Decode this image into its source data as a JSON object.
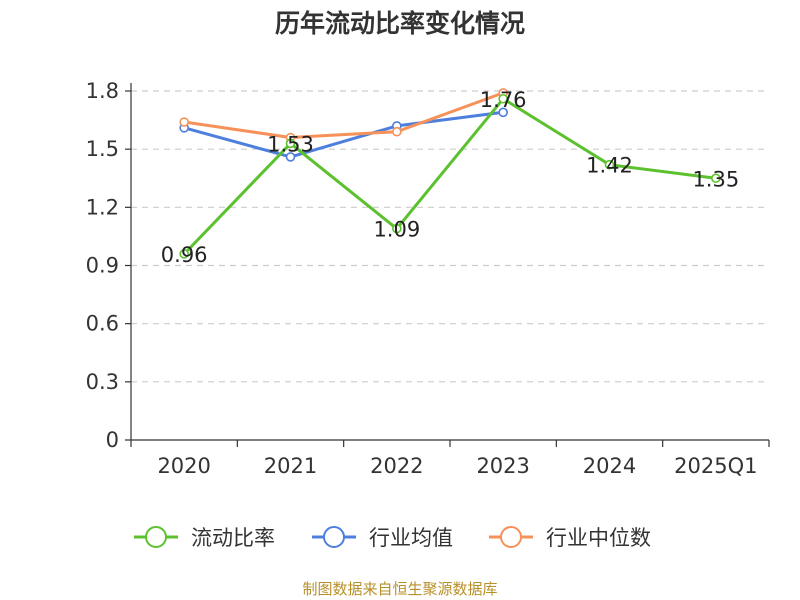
{
  "title": "历年流动比率变化情况",
  "footer": "制图数据来自恒生聚源数据库",
  "chart_data": {
    "type": "line",
    "title": "历年流动比率变化情况",
    "xlabel": "",
    "ylabel": "",
    "categories": [
      "2020",
      "2021",
      "2022",
      "2023",
      "2024",
      "2025Q1"
    ],
    "ylim": [
      0,
      1.8
    ],
    "yticks": [
      "0",
      "0.3",
      "0.6",
      "0.9",
      "1.2",
      "1.5",
      "1.8"
    ],
    "grid": "horizontal-dashed",
    "legend": "bottom",
    "series": [
      {
        "name": "流动比率",
        "color": "#5cc12f",
        "values": [
          0.96,
          1.53,
          1.09,
          1.76,
          1.42,
          1.35
        ],
        "labels": [
          "0.96",
          "1.53",
          "1.09",
          "1.76",
          "1.42",
          "1.35"
        ]
      },
      {
        "name": "行业均值",
        "color": "#4f7fdc",
        "values": [
          1.61,
          1.46,
          1.62,
          1.69,
          null,
          null
        ]
      },
      {
        "name": "行业中位数",
        "color": "#f6915a",
        "values": [
          1.64,
          1.56,
          1.59,
          1.79,
          null,
          null
        ]
      }
    ]
  }
}
